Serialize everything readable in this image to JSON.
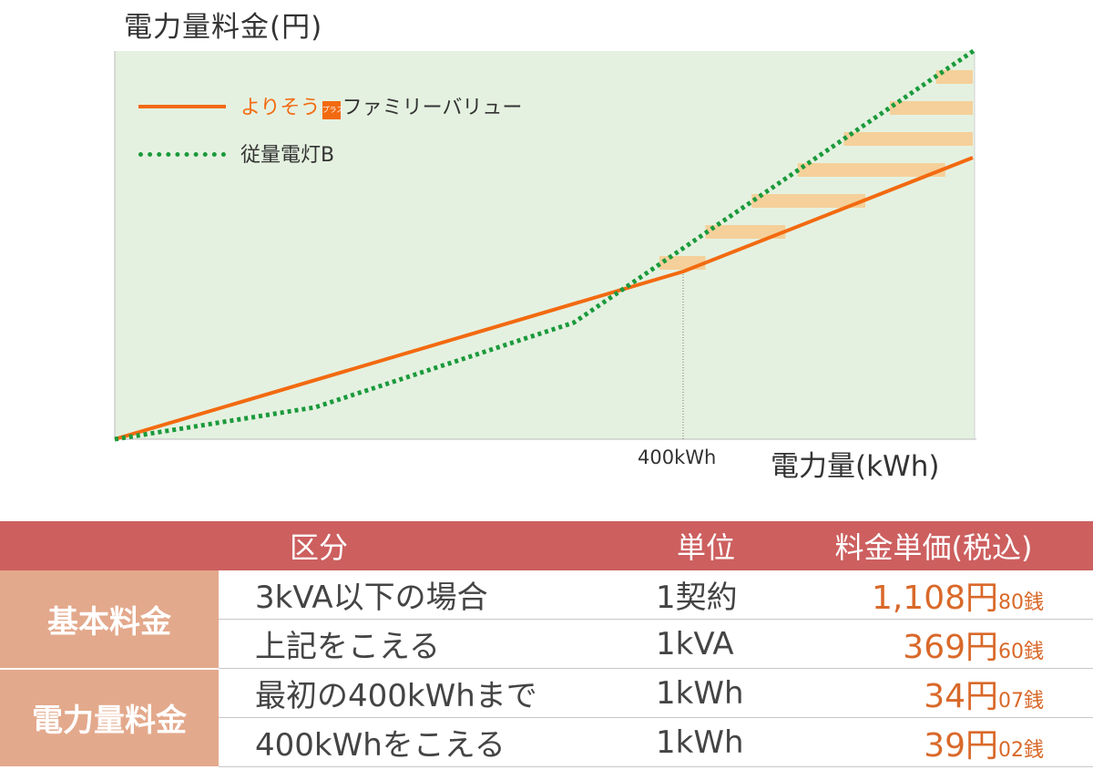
{
  "chart_data": {
    "type": "line",
    "ylabel": "電力量料金(円)",
    "xlabel": "電力量(kWh)",
    "marker_label": "400kWh",
    "series": [
      {
        "name_prefix": "よりそう",
        "name_badge": "プラス",
        "name_suffix": "ファミリーバリュー",
        "color": "#f26a10",
        "style": "solid"
      },
      {
        "name": "従量電灯B",
        "color": "#1a9a3c",
        "style": "dotted"
      }
    ],
    "background_color": "#e5f1e0",
    "savings_stripe_color": "#f5d09a"
  },
  "table": {
    "headers": [
      "区分",
      "単位",
      "料金単価(税込)"
    ],
    "rows": [
      {
        "category": "基本料金",
        "desc": "3kVA以下の場合",
        "unit": "1契約",
        "price_yen": "1,108円",
        "price_sen": "80銭"
      },
      {
        "desc": "上記をこえる",
        "unit": "1kVA",
        "price_yen": "369円",
        "price_sen": "60銭"
      },
      {
        "category": "電力量料金",
        "desc": "最初の400kWhまで",
        "unit": "1kWh",
        "price_yen": "34円",
        "price_sen": "07銭"
      },
      {
        "desc": "400kWhをこえる",
        "unit": "1kWh",
        "price_yen": "39円",
        "price_sen": "02銭"
      }
    ]
  }
}
